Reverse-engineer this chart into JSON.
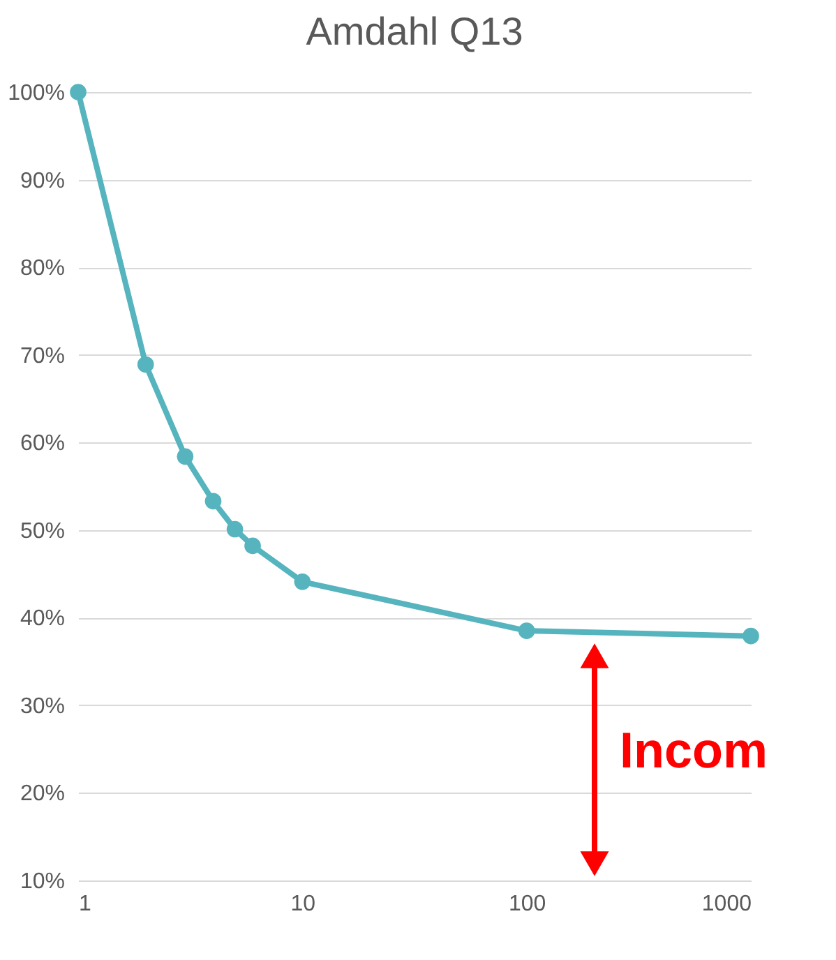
{
  "chart_data": {
    "type": "line",
    "title": "Amdahl Q13",
    "x": [
      1,
      2,
      3,
      4,
      5,
      6,
      10,
      100,
      1000
    ],
    "series": [
      {
        "color": "#56b4be",
        "values": [
          100,
          68.9,
          58.4,
          53.3,
          50.1,
          48.2,
          44.1,
          38.5,
          37.9
        ]
      }
    ],
    "log": "x",
    "xlim": [
      1,
      1000
    ],
    "xticks": [
      1,
      10,
      100,
      1000
    ],
    "ylim": [
      10,
      100
    ],
    "yticks": [
      {
        "value": 10,
        "label": "10%"
      },
      {
        "value": 20,
        "label": "20%"
      },
      {
        "value": 30,
        "label": "30%"
      },
      {
        "value": 40,
        "label": "40%"
      },
      {
        "value": 50,
        "label": "50%"
      },
      {
        "value": 60,
        "label": "60%"
      },
      {
        "value": 70,
        "label": "70%"
      },
      {
        "value": 80,
        "label": "80%"
      },
      {
        "value": 90,
        "label": "90%"
      },
      {
        "value": 100,
        "label": "100%"
      }
    ],
    "grid": "y",
    "marker": "circle",
    "line_style": "solid",
    "annotations": [
      "Incom"
    ]
  }
}
